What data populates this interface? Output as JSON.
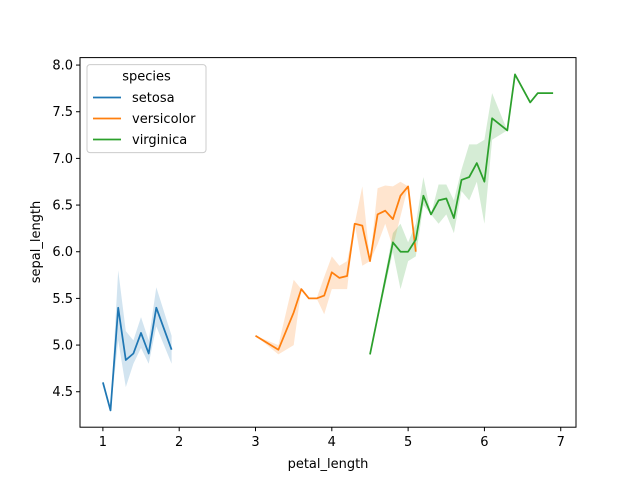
{
  "chart_data": {
    "type": "line",
    "title": "",
    "xlabel": "petal_length",
    "ylabel": "sepal_length",
    "xlim": [
      0.7,
      7.2
    ],
    "ylim": [
      4.12,
      8.08
    ],
    "xticks": [
      1,
      2,
      3,
      4,
      5,
      6,
      7
    ],
    "xtick_labels": [
      "1",
      "2",
      "3",
      "4",
      "5",
      "6",
      "7"
    ],
    "yticks": [
      4.5,
      5.0,
      5.5,
      6.0,
      6.5,
      7.0,
      7.5,
      8.0
    ],
    "ytick_labels": [
      "4.5",
      "5.0",
      "5.5",
      "6.0",
      "6.5",
      "7.0",
      "7.5",
      "8.0"
    ],
    "grid": false,
    "legend": {
      "title": "species",
      "position": "top-left"
    },
    "series": [
      {
        "name": "setosa",
        "color": "#1f77b4",
        "x": [
          1.0,
          1.1,
          1.2,
          1.3,
          1.4,
          1.5,
          1.6,
          1.7,
          1.9
        ],
        "y": [
          4.6,
          4.3,
          5.4,
          4.84,
          4.91,
          5.13,
          4.91,
          5.4,
          4.95
        ],
        "ci_low": [
          4.6,
          4.3,
          5.05,
          4.55,
          4.8,
          4.97,
          4.8,
          5.2,
          4.8
        ],
        "ci_high": [
          4.6,
          4.3,
          5.8,
          5.15,
          5.05,
          5.3,
          5.05,
          5.62,
          5.1
        ]
      },
      {
        "name": "versicolor",
        "color": "#ff7f0e",
        "x": [
          3.0,
          3.3,
          3.5,
          3.6,
          3.7,
          3.8,
          3.9,
          4.0,
          4.1,
          4.2,
          4.3,
          4.4,
          4.5,
          4.6,
          4.7,
          4.8,
          4.9,
          5.0,
          5.1
        ],
        "y": [
          5.1,
          4.95,
          5.35,
          5.6,
          5.5,
          5.5,
          5.53,
          5.78,
          5.72,
          5.74,
          6.3,
          6.28,
          5.9,
          6.4,
          6.44,
          6.35,
          6.6,
          6.7,
          6.0
        ],
        "ci_low": [
          5.1,
          4.9,
          5.0,
          5.6,
          5.5,
          5.5,
          5.33,
          5.6,
          5.6,
          5.6,
          6.3,
          5.85,
          5.9,
          6.08,
          6.3,
          6.05,
          6.38,
          6.7,
          6.0
        ],
        "ci_high": [
          5.1,
          5.0,
          5.7,
          5.6,
          5.5,
          5.5,
          5.73,
          5.95,
          5.85,
          5.9,
          6.3,
          6.7,
          5.9,
          6.68,
          6.71,
          6.7,
          6.75,
          6.7,
          6.0
        ]
      },
      {
        "name": "virginica",
        "color": "#2ca02c",
        "x": [
          4.5,
          4.8,
          4.9,
          5.0,
          5.1,
          5.2,
          5.3,
          5.4,
          5.5,
          5.6,
          5.7,
          5.8,
          5.9,
          6.0,
          6.1,
          6.3,
          6.4,
          6.6,
          6.7,
          6.9
        ],
        "y": [
          4.9,
          6.1,
          6.0,
          6.0,
          6.13,
          6.6,
          6.4,
          6.55,
          6.57,
          6.36,
          6.77,
          6.8,
          6.95,
          6.75,
          7.43,
          7.3,
          7.9,
          7.6,
          7.7,
          7.7
        ],
        "ci_low": [
          4.9,
          6.0,
          5.6,
          5.9,
          5.95,
          6.5,
          6.4,
          6.3,
          6.4,
          6.2,
          6.65,
          6.55,
          6.75,
          6.3,
          7.2,
          7.3,
          7.9,
          7.6,
          7.7,
          7.7
        ],
        "ci_high": [
          4.9,
          6.2,
          6.3,
          6.1,
          6.3,
          6.8,
          6.4,
          6.72,
          6.72,
          6.55,
          6.88,
          7.15,
          7.15,
          7.2,
          7.7,
          7.3,
          7.9,
          7.6,
          7.7,
          7.7
        ]
      }
    ]
  }
}
